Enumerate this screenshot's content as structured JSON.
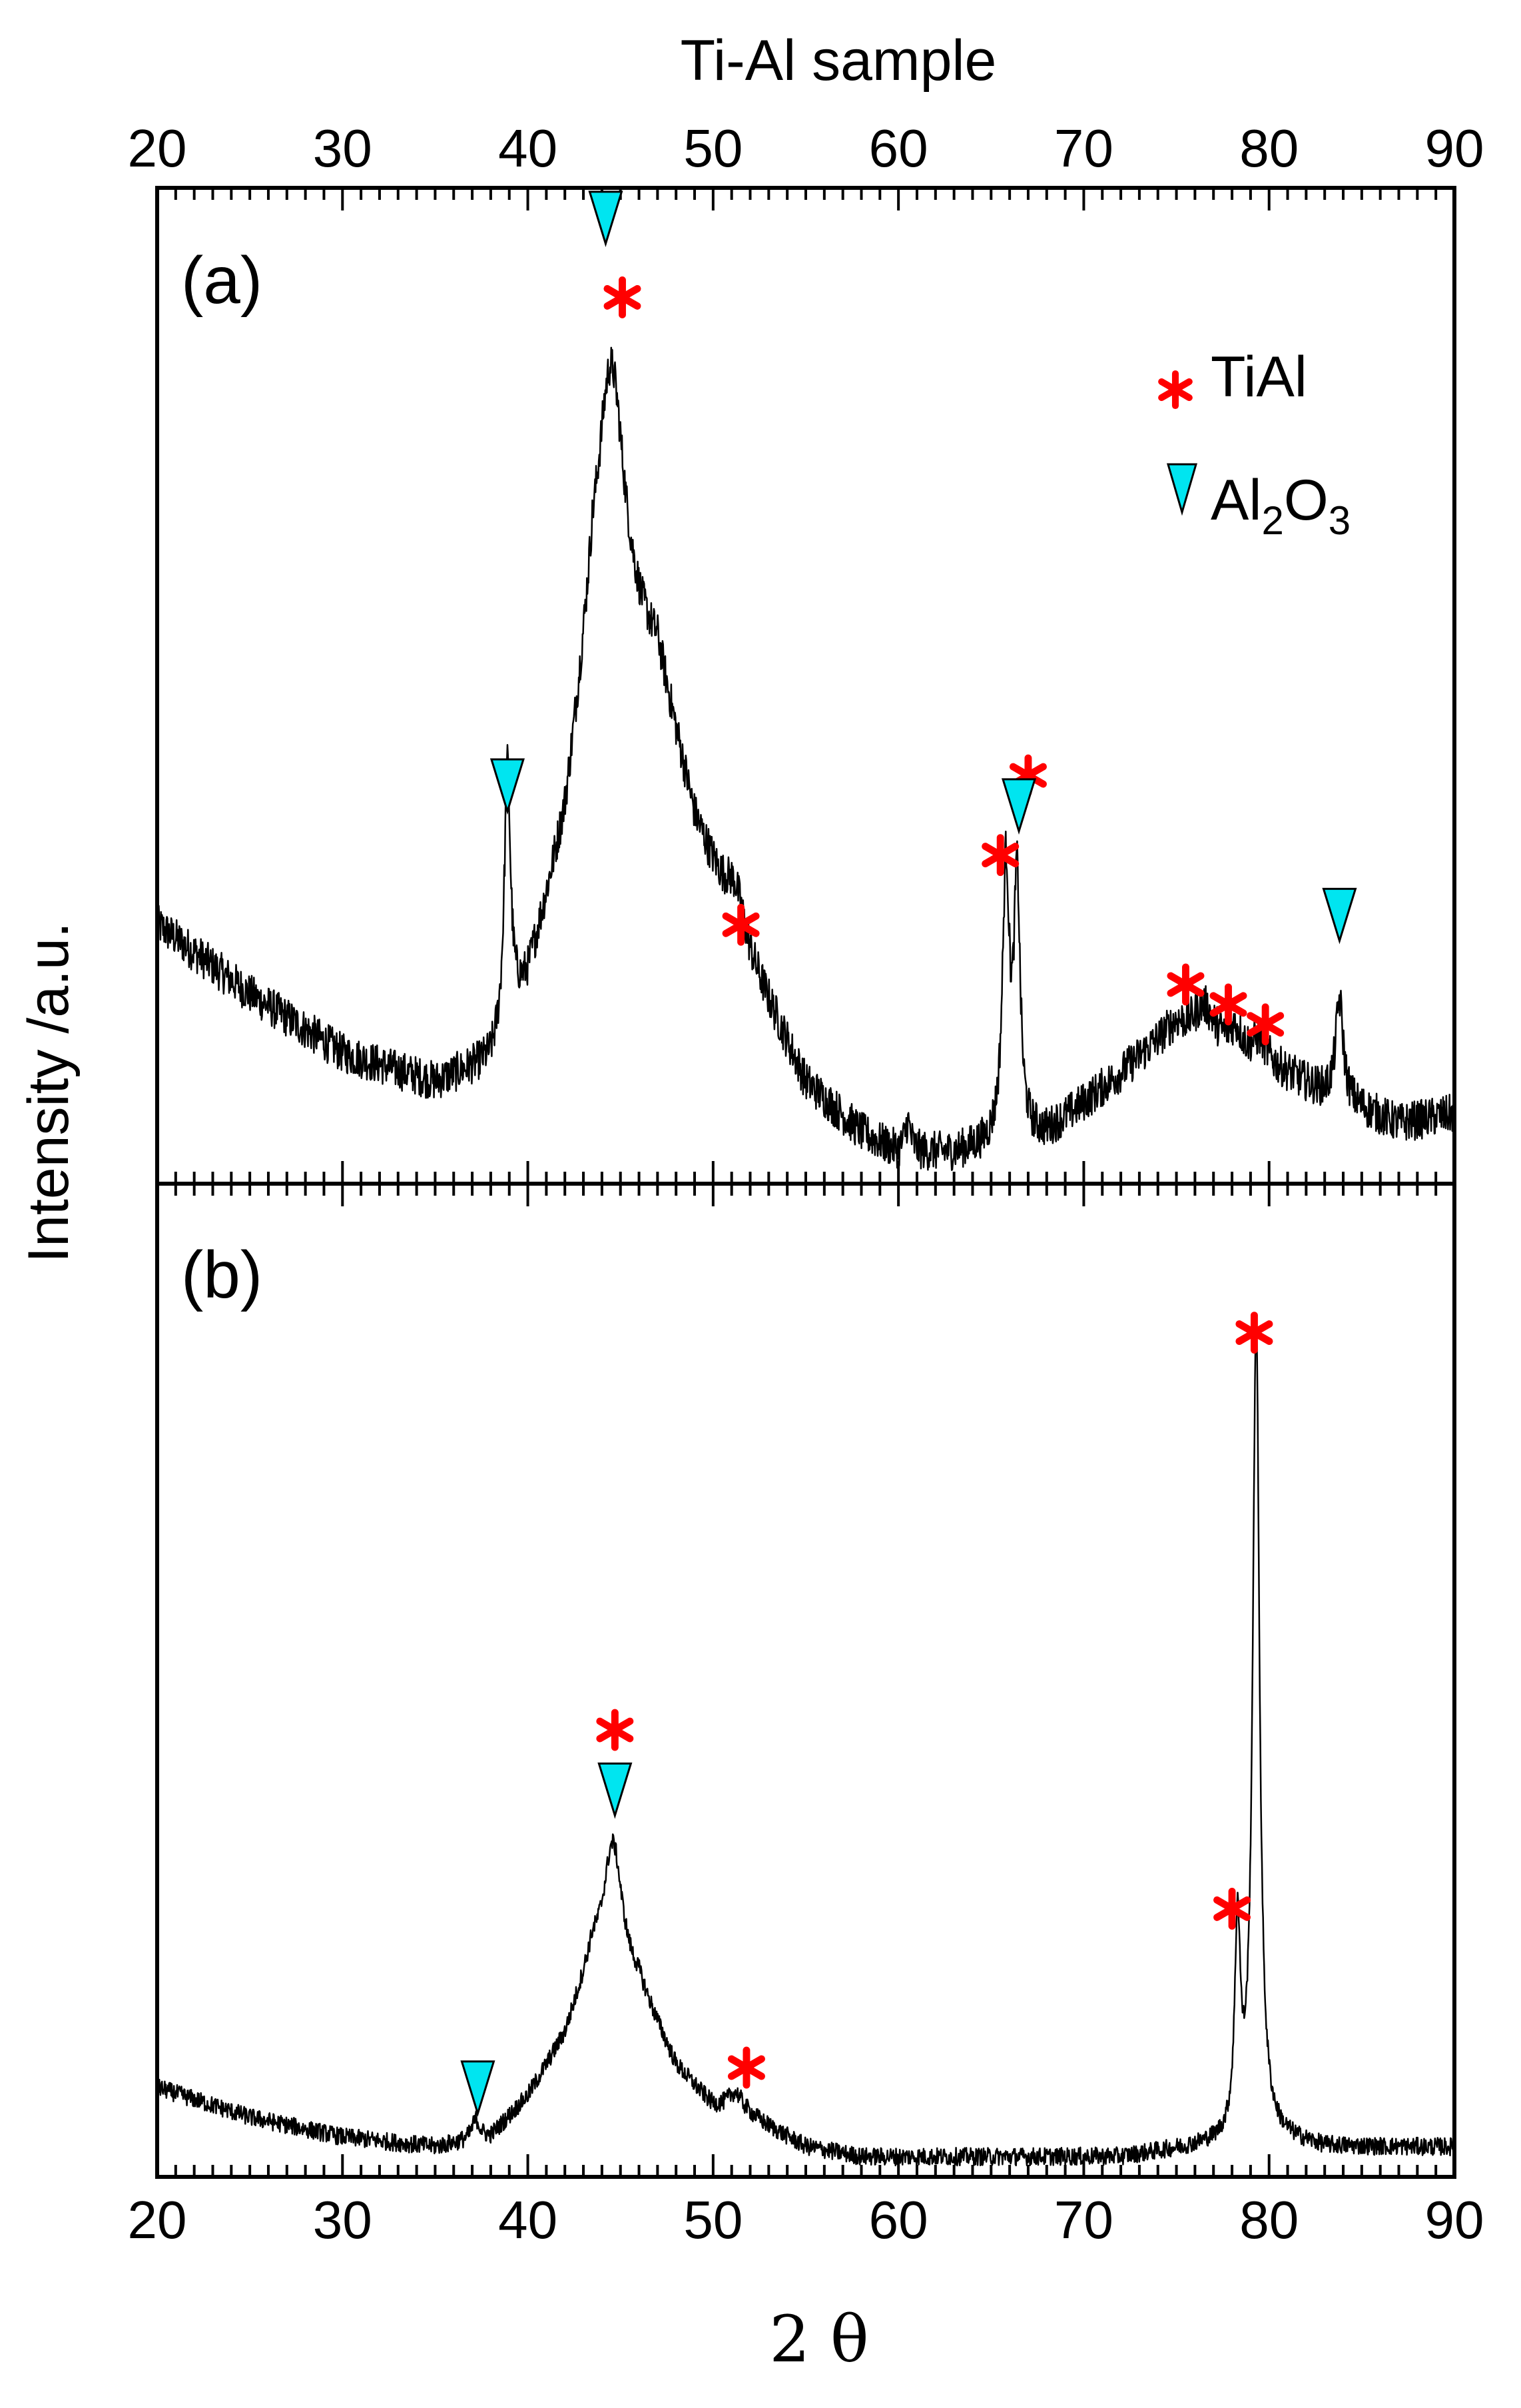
{
  "chart_data": {
    "type": "line",
    "title": "Ti-Al sample",
    "xlabel": "2 θ",
    "ylabel": "Intensity /a.u.",
    "xlim": [
      20,
      90
    ],
    "xticks": [
      "20",
      "30",
      "40",
      "50",
      "60",
      "70",
      "80",
      "90"
    ],
    "grid": false,
    "legend": [
      {
        "symbol": "asterisk",
        "color": "#ff0000",
        "label": "TiAl"
      },
      {
        "symbol": "triangle-down",
        "color": "#00e5f0",
        "label_main": "Al",
        "sub1": "2",
        "label_mid": "O",
        "sub2": "3"
      }
    ],
    "line_color": "#000000",
    "panels": [
      {
        "label": "(a)",
        "ylim": [
          0,
          100
        ],
        "baseline": [
          [
            20,
            26
          ],
          [
            25,
            19
          ],
          [
            30,
            13
          ],
          [
            35,
            10
          ],
          [
            38,
            12
          ],
          [
            40,
            20
          ],
          [
            42,
            35
          ],
          [
            43.5,
            55
          ],
          [
            47,
            52
          ],
          [
            49,
            36
          ],
          [
            52,
            22
          ],
          [
            55,
            10
          ],
          [
            58,
            5
          ],
          [
            60,
            3
          ],
          [
            63,
            3
          ],
          [
            68,
            5
          ],
          [
            72,
            11
          ],
          [
            75,
            16
          ],
          [
            80,
            12
          ],
          [
            83,
            9
          ],
          [
            87,
            6
          ],
          [
            90,
            7
          ]
        ],
        "peaks": [
          {
            "x": 38.9,
            "height": 26,
            "width": 0.2
          },
          {
            "x": 44.5,
            "height": 28,
            "width": 0.9
          },
          {
            "x": 51.2,
            "height": 4,
            "width": 0.6
          },
          {
            "x": 60.5,
            "height": 3,
            "width": 0.2
          },
          {
            "x": 65.8,
            "height": 27,
            "width": 0.22
          },
          {
            "x": 66.4,
            "height": 25,
            "width": 0.2
          },
          {
            "x": 76.5,
            "height": 3,
            "width": 0.6
          },
          {
            "x": 78.2,
            "height": 2,
            "width": 0.4
          },
          {
            "x": 79.5,
            "height": 2,
            "width": 0.4
          },
          {
            "x": 83.8,
            "height": 10,
            "width": 0.25
          }
        ],
        "noise": 2.0,
        "markers": [
          {
            "type": "triangle",
            "x": 44.2,
            "y": 97
          },
          {
            "type": "asterisk",
            "x": 45.1,
            "y": 89
          },
          {
            "type": "triangle",
            "x": 38.9,
            "y": 40
          },
          {
            "type": "asterisk",
            "x": 51.5,
            "y": 26
          },
          {
            "type": "asterisk",
            "x": 65.5,
            "y": 33
          },
          {
            "type": "asterisk",
            "x": 67.0,
            "y": 41
          },
          {
            "type": "triangle",
            "x": 66.5,
            "y": 38
          },
          {
            "type": "asterisk",
            "x": 75.5,
            "y": 20
          },
          {
            "type": "asterisk",
            "x": 77.8,
            "y": 18
          },
          {
            "type": "asterisk",
            "x": 79.8,
            "y": 16
          },
          {
            "type": "triangle",
            "x": 83.8,
            "y": 27
          }
        ]
      },
      {
        "label": "(b)",
        "ylim": [
          0,
          100
        ],
        "baseline": [
          [
            20,
            9
          ],
          [
            25,
            6
          ],
          [
            30,
            4
          ],
          [
            35,
            3
          ],
          [
            38,
            4
          ],
          [
            40,
            8
          ],
          [
            42,
            14
          ],
          [
            43.5,
            22
          ],
          [
            46,
            19
          ],
          [
            48,
            11
          ],
          [
            50,
            7
          ],
          [
            52,
            6
          ],
          [
            55,
            3
          ],
          [
            58,
            2
          ],
          [
            65,
            2
          ],
          [
            72,
            2
          ],
          [
            76,
            3
          ],
          [
            80,
            4
          ],
          [
            83,
            3
          ],
          [
            90,
            3
          ]
        ],
        "peaks": [
          {
            "x": 37.2,
            "height": 2,
            "width": 0.25
          },
          {
            "x": 44.6,
            "height": 13,
            "width": 0.6
          },
          {
            "x": 51.2,
            "height": 2,
            "width": 0.5
          },
          {
            "x": 78.3,
            "height": 21,
            "width": 0.18
          },
          {
            "x": 79.3,
            "height": 82,
            "width": 0.22
          }
        ],
        "noise": 0.9,
        "markers": [
          {
            "type": "triangle",
            "x": 37.3,
            "y": 9
          },
          {
            "type": "asterisk",
            "x": 44.7,
            "y": 45
          },
          {
            "type": "triangle",
            "x": 44.7,
            "y": 39
          },
          {
            "type": "asterisk",
            "x": 51.8,
            "y": 11
          },
          {
            "type": "asterisk",
            "x": 78.0,
            "y": 27
          },
          {
            "type": "asterisk",
            "x": 79.2,
            "y": 85
          }
        ]
      }
    ]
  }
}
